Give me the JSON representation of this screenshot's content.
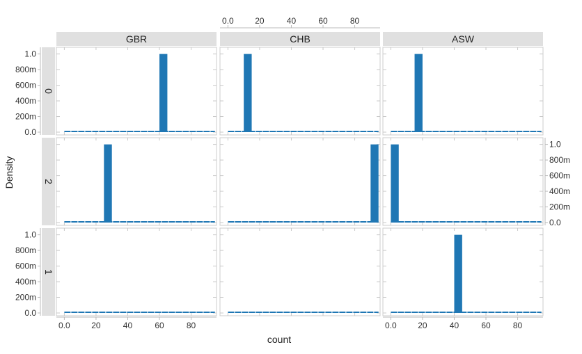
{
  "chart_data": {
    "type": "bar",
    "chart_kind": "faceted histogram (density)",
    "xlabel": "count",
    "ylabel": "Density",
    "columns": [
      "GBR",
      "CHB",
      "ASW"
    ],
    "rows": [
      "0",
      "2",
      "1"
    ],
    "x_range": [
      -5,
      96
    ],
    "y_range": [
      0,
      1.05
    ],
    "x_ticks": [
      0,
      20,
      40,
      60,
      80
    ],
    "x_tick_labels": [
      "0.0",
      "20",
      "40",
      "60",
      "80"
    ],
    "y_ticks": [
      0,
      0.2,
      0.4,
      0.6,
      0.8,
      1.0
    ],
    "y_tick_labels": [
      "0.0",
      "200m",
      "400m",
      "600m",
      "800m",
      "1.0"
    ],
    "bar_color": "#1f77b4",
    "strip_color": "#e0e0e0",
    "panels": [
      {
        "row": "0",
        "col": "GBR",
        "bar_x": [
          60,
          65
        ],
        "density": 1.0
      },
      {
        "row": "0",
        "col": "CHB",
        "bar_x": [
          10,
          15
        ],
        "density": 1.0
      },
      {
        "row": "0",
        "col": "ASW",
        "bar_x": [
          15,
          20
        ],
        "density": 1.0
      },
      {
        "row": "2",
        "col": "GBR",
        "bar_x": [
          25,
          30
        ],
        "density": 1.0
      },
      {
        "row": "2",
        "col": "CHB",
        "bar_x": [
          90,
          95
        ],
        "density": 1.0
      },
      {
        "row": "2",
        "col": "ASW",
        "bar_x": [
          0,
          5
        ],
        "density": 1.0
      },
      {
        "row": "1",
        "col": "GBR",
        "bar_x": null,
        "density": 0
      },
      {
        "row": "1",
        "col": "CHB",
        "bar_x": null,
        "density": 0
      },
      {
        "row": "1",
        "col": "ASW",
        "bar_x": [
          40,
          45
        ],
        "density": 1.0
      }
    ]
  }
}
